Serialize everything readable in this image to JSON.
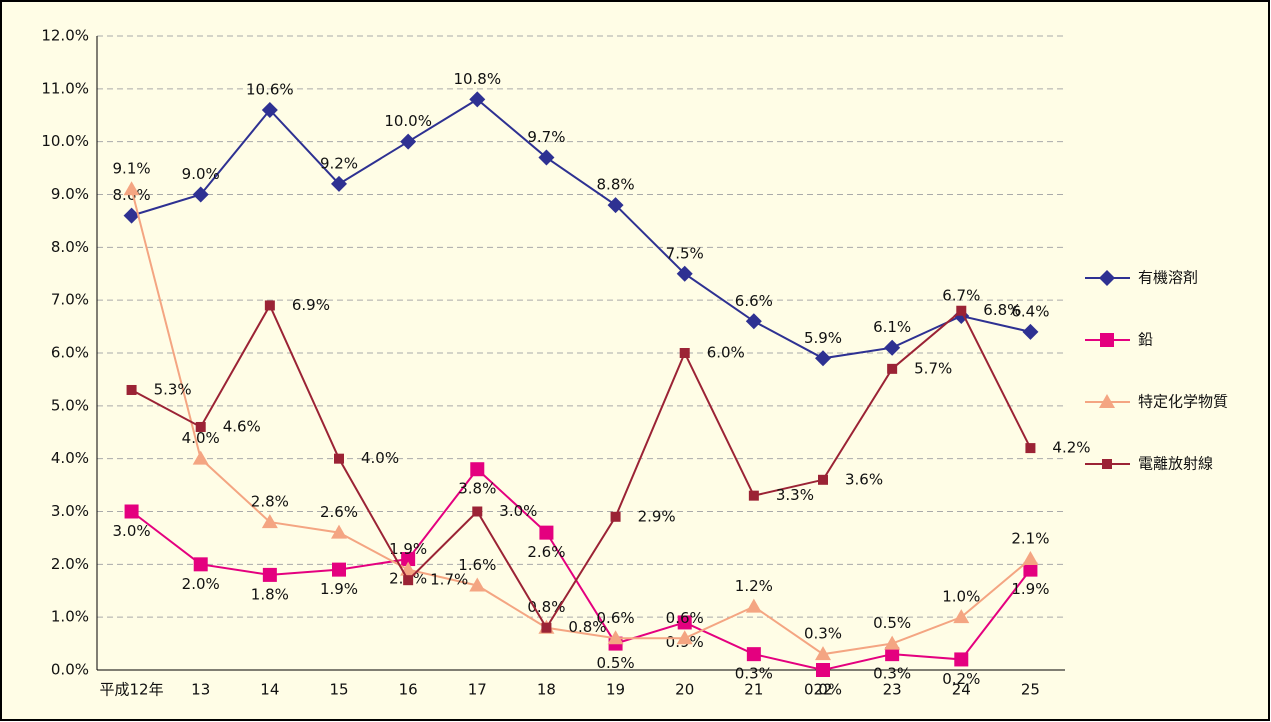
{
  "chart_data": {
    "type": "line",
    "categories": [
      "平成12年",
      "13",
      "14",
      "15",
      "16",
      "17",
      "18",
      "19",
      "20",
      "21",
      "22",
      "23",
      "24",
      "25"
    ],
    "series": [
      {
        "name": "有機溶剤",
        "color": "#2e3192",
        "marker": "diamond",
        "values": [
          8.6,
          9.0,
          10.6,
          9.2,
          10.0,
          10.8,
          9.7,
          8.8,
          7.5,
          6.6,
          5.9,
          6.1,
          6.7,
          6.4
        ],
        "value_labels": [
          "8.6%",
          "9.0%",
          "10.6%",
          "9.2%",
          "10.0%",
          "10.8%",
          "9.7%",
          "8.8%",
          "7.5%",
          "6.6%",
          "5.9%",
          "6.1%",
          "6.7%",
          "6.4%"
        ]
      },
      {
        "name": "鉛",
        "color": "#e4007f",
        "marker": "square",
        "values": [
          3.0,
          2.0,
          1.8,
          1.9,
          2.1,
          3.8,
          2.6,
          0.5,
          0.9,
          0.3,
          0.0,
          0.3,
          0.2,
          1.9
        ],
        "value_labels": [
          "3.0%",
          "2.0%",
          "1.8%",
          "1.9%",
          "2.1%",
          "3.8%",
          "2.6%",
          "0.5%",
          "0.9%",
          "0.3%",
          "0.0%",
          "0.3%",
          "0.2%",
          "1.9%"
        ]
      },
      {
        "name": "特定化学物質",
        "color": "#f4a582",
        "marker": "triangle",
        "values": [
          9.1,
          4.0,
          2.8,
          2.6,
          1.9,
          1.6,
          0.8,
          0.6,
          0.6,
          1.2,
          0.3,
          0.5,
          1.0,
          2.1
        ],
        "value_labels": [
          "9.1%",
          "4.0%",
          "2.8%",
          "2.6%",
          "1.9%",
          "1.6%",
          "0.8%",
          "0.6%",
          "0.6%",
          "1.2%",
          "0.3%",
          "0.5%",
          "1.0%",
          "2.1%"
        ]
      },
      {
        "name": "電離放射線",
        "color": "#9b2335",
        "marker": "smallsquare",
        "values": [
          5.3,
          4.6,
          6.9,
          4.0,
          1.7,
          3.0,
          0.8,
          2.9,
          6.0,
          3.3,
          3.6,
          5.7,
          6.8,
          4.2
        ],
        "value_labels": [
          "5.3%",
          "4.6%",
          "6.9%",
          "4.0%",
          "1.7%",
          "3.0%",
          "0.8%",
          "2.9%",
          "6.0%",
          "3.3%",
          "3.6%",
          "5.7%",
          "6.8%",
          "4.2%"
        ]
      }
    ],
    "ylim": [
      0,
      12
    ],
    "yticks": [
      {
        "value": 0,
        "label": "0.0%"
      },
      {
        "value": 1,
        "label": "1.0%"
      },
      {
        "value": 2,
        "label": "2.0%"
      },
      {
        "value": 3,
        "label": "3.0%"
      },
      {
        "value": 4,
        "label": "4.0%"
      },
      {
        "value": 5,
        "label": "5.0%"
      },
      {
        "value": 6,
        "label": "6.0%"
      },
      {
        "value": 7,
        "label": "7.0%"
      },
      {
        "value": 8,
        "label": "8.0%"
      },
      {
        "value": 9,
        "label": "9.0%"
      },
      {
        "value": 10,
        "label": "10.0%"
      },
      {
        "value": 11,
        "label": "11.0%"
      },
      {
        "value": 12,
        "label": "12.0%"
      }
    ],
    "grid": true,
    "legend": "right"
  }
}
